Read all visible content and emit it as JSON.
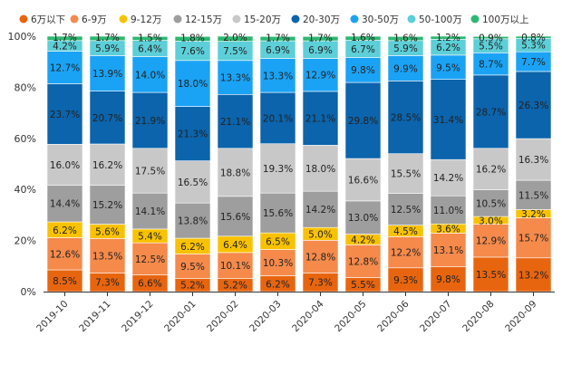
{
  "chart_data": {
    "type": "bar",
    "stacked": true,
    "percent": true,
    "categories": [
      "2019-10",
      "2019-11",
      "2019-12",
      "2020-01",
      "2020-02",
      "2020-03",
      "2020-04",
      "2020-05",
      "2020-06",
      "2020-07",
      "2020-08",
      "2020-09"
    ],
    "ylim": [
      0,
      100
    ],
    "yticks": [
      "0%",
      "20%",
      "40%",
      "60%",
      "80%",
      "100%"
    ],
    "legend_position": "top",
    "series": [
      {
        "name": "6万以下",
        "color": "#e8650f",
        "values": [
          8.5,
          7.3,
          6.6,
          5.2,
          5.2,
          6.2,
          7.3,
          5.5,
          9.3,
          9.8,
          13.5,
          13.2
        ],
        "labels": [
          "8.5%",
          "7.3%",
          "6.6%",
          "5.2%",
          "5.2%",
          "6.2%",
          "7.3%",
          "5.5%",
          "9.3%",
          "9.8%",
          "13.5%",
          "13.2%"
        ]
      },
      {
        "name": "6-9万",
        "color": "#f58a4b",
        "values": [
          12.6,
          13.5,
          12.5,
          9.5,
          10.1,
          10.3,
          12.8,
          12.8,
          12.2,
          13.1,
          12.9,
          15.7
        ],
        "labels": [
          "12.6%",
          "13.5%",
          "12.5%",
          "9.5%",
          "10.1%",
          "10.3%",
          "12.8%",
          "12.8%",
          "12.2%",
          "13.1%",
          "12.9%",
          "15.7%"
        ]
      },
      {
        "name": "9-12万",
        "color": "#f9c200",
        "values": [
          6.2,
          5.6,
          5.4,
          6.2,
          6.4,
          6.5,
          5.0,
          4.2,
          4.5,
          3.6,
          3.0,
          3.2
        ],
        "labels": [
          "6.2%",
          "5.6%",
          "5.4%",
          "6.2%",
          "6.4%",
          "6.5%",
          "5.0%",
          "4.2%",
          "4.5%",
          "3.6%",
          "3.0%",
          "3.2%"
        ]
      },
      {
        "name": "12-15万",
        "color": "#9e9e9e",
        "values": [
          14.4,
          15.2,
          14.1,
          13.8,
          15.6,
          15.6,
          14.2,
          13.0,
          12.5,
          11.0,
          10.5,
          11.5
        ],
        "labels": [
          "14.4%",
          "15.2%",
          "14.1%",
          "13.8%",
          "15.6%",
          "15.6%",
          "14.2%",
          "13.0%",
          "12.5%",
          "11.0%",
          "10.5%",
          "11.5%"
        ]
      },
      {
        "name": "15-20万",
        "color": "#c8c8c8",
        "values": [
          16.0,
          16.2,
          17.5,
          16.5,
          18.8,
          19.3,
          18.0,
          16.6,
          15.5,
          14.2,
          16.2,
          16.3
        ],
        "labels": [
          "16.0%",
          "16.2%",
          "17.5%",
          "16.5%",
          "18.8%",
          "19.3%",
          "18.0%",
          "16.6%",
          "15.5%",
          "14.2%",
          "16.2%",
          "16.3%"
        ]
      },
      {
        "name": "20-30万",
        "color": "#0b64ac",
        "values": [
          23.7,
          20.7,
          21.9,
          21.3,
          21.1,
          20.1,
          21.1,
          29.8,
          28.5,
          31.4,
          28.7,
          26.3
        ],
        "labels": [
          "23.7%",
          "20.7%",
          "21.9%",
          "21.3%",
          "21.1%",
          "20.1%",
          "21.1%",
          "29.8%",
          "28.5%",
          "31.4%",
          "28.7%",
          "26.3%"
        ]
      },
      {
        "name": "30-50万",
        "color": "#1aa3f5",
        "values": [
          12.7,
          13.9,
          14.0,
          18.0,
          13.3,
          13.3,
          12.9,
          9.8,
          9.9,
          9.5,
          8.7,
          7.7
        ],
        "labels": [
          "12.7%",
          "13.9%",
          "14.0%",
          "18.0%",
          "13.3%",
          "13.3%",
          "12.9%",
          "9.8%",
          "9.9%",
          "9.5%",
          "8.7%",
          "7.7%"
        ]
      },
      {
        "name": "50-100万",
        "color": "#5ccfd8",
        "values": [
          4.2,
          5.9,
          6.4,
          7.6,
          7.5,
          6.9,
          6.9,
          6.7,
          5.9,
          6.2,
          5.5,
          5.3
        ],
        "labels": [
          "4.2%",
          "5.9%",
          "6.4%",
          "7.6%",
          "7.5%",
          "6.9%",
          "6.9%",
          "6.7%",
          "5.9%",
          "6.2%",
          "5.5%",
          "5.3%"
        ]
      },
      {
        "name": "100万以上",
        "color": "#2db872",
        "values": [
          1.7,
          1.7,
          1.5,
          1.8,
          2.0,
          1.7,
          1.7,
          1.6,
          1.6,
          1.2,
          0.9,
          0.8
        ],
        "labels": [
          "1.7%",
          "1.7%",
          "1.5%",
          "1.8%",
          "2.0%",
          "1.7%",
          "1.7%",
          "1.6%",
          "1.6%",
          "1.2%",
          "0.9%",
          "0.8%"
        ]
      }
    ]
  }
}
